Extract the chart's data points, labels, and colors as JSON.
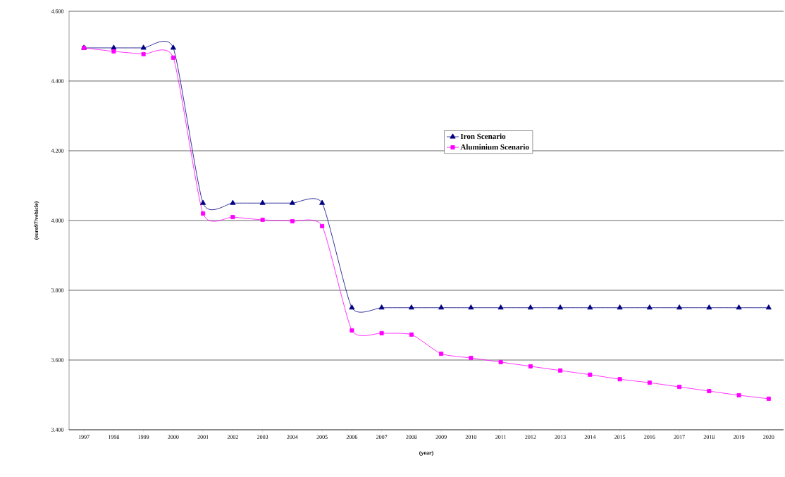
{
  "chart_data": {
    "type": "line",
    "xlabel": "(year)",
    "ylabel": "(euro97/vehicle)",
    "categories": [
      "1997",
      "1998",
      "1999",
      "2000",
      "2001",
      "2002",
      "2003",
      "2004",
      "2005",
      "2006",
      "2007",
      "2008",
      "2009",
      "2010",
      "2011",
      "2012",
      "2013",
      "2014",
      "2015",
      "2016",
      "2017",
      "2018",
      "2019",
      "2020"
    ],
    "series": [
      {
        "name": "Iron Scenario",
        "color": "#000080",
        "marker": "triangle",
        "values": [
          4495,
          4495,
          4495,
          4495,
          4050,
          4050,
          4050,
          4050,
          4050,
          3750,
          3750,
          3750,
          3750,
          3750,
          3750,
          3750,
          3750,
          3750,
          3750,
          3750,
          3750,
          3750,
          3750,
          3750
        ]
      },
      {
        "name": "Aluminium Scenario",
        "color": "#ff00ff",
        "marker": "square",
        "values": [
          4495,
          4485,
          4477,
          4467,
          4020,
          4010,
          4002,
          3998,
          3984,
          3685,
          3677,
          3673,
          3618,
          3606,
          3594,
          3582,
          3570,
          3558,
          3545,
          3535,
          3523,
          3511,
          3499,
          3489
        ]
      }
    ],
    "ylim": [
      3400,
      4600
    ],
    "yticks": [
      {
        "value": 3400,
        "label": "3.400"
      },
      {
        "value": 3600,
        "label": "3.600"
      },
      {
        "value": 3800,
        "label": "3.800"
      },
      {
        "value": 4000,
        "label": "4.000"
      },
      {
        "value": 4200,
        "label": "4.200"
      },
      {
        "value": 4400,
        "label": "4.400"
      },
      {
        "value": 4600,
        "label": "4.600"
      }
    ],
    "grid": "y",
    "legend": "center",
    "line_style": "solid"
  }
}
